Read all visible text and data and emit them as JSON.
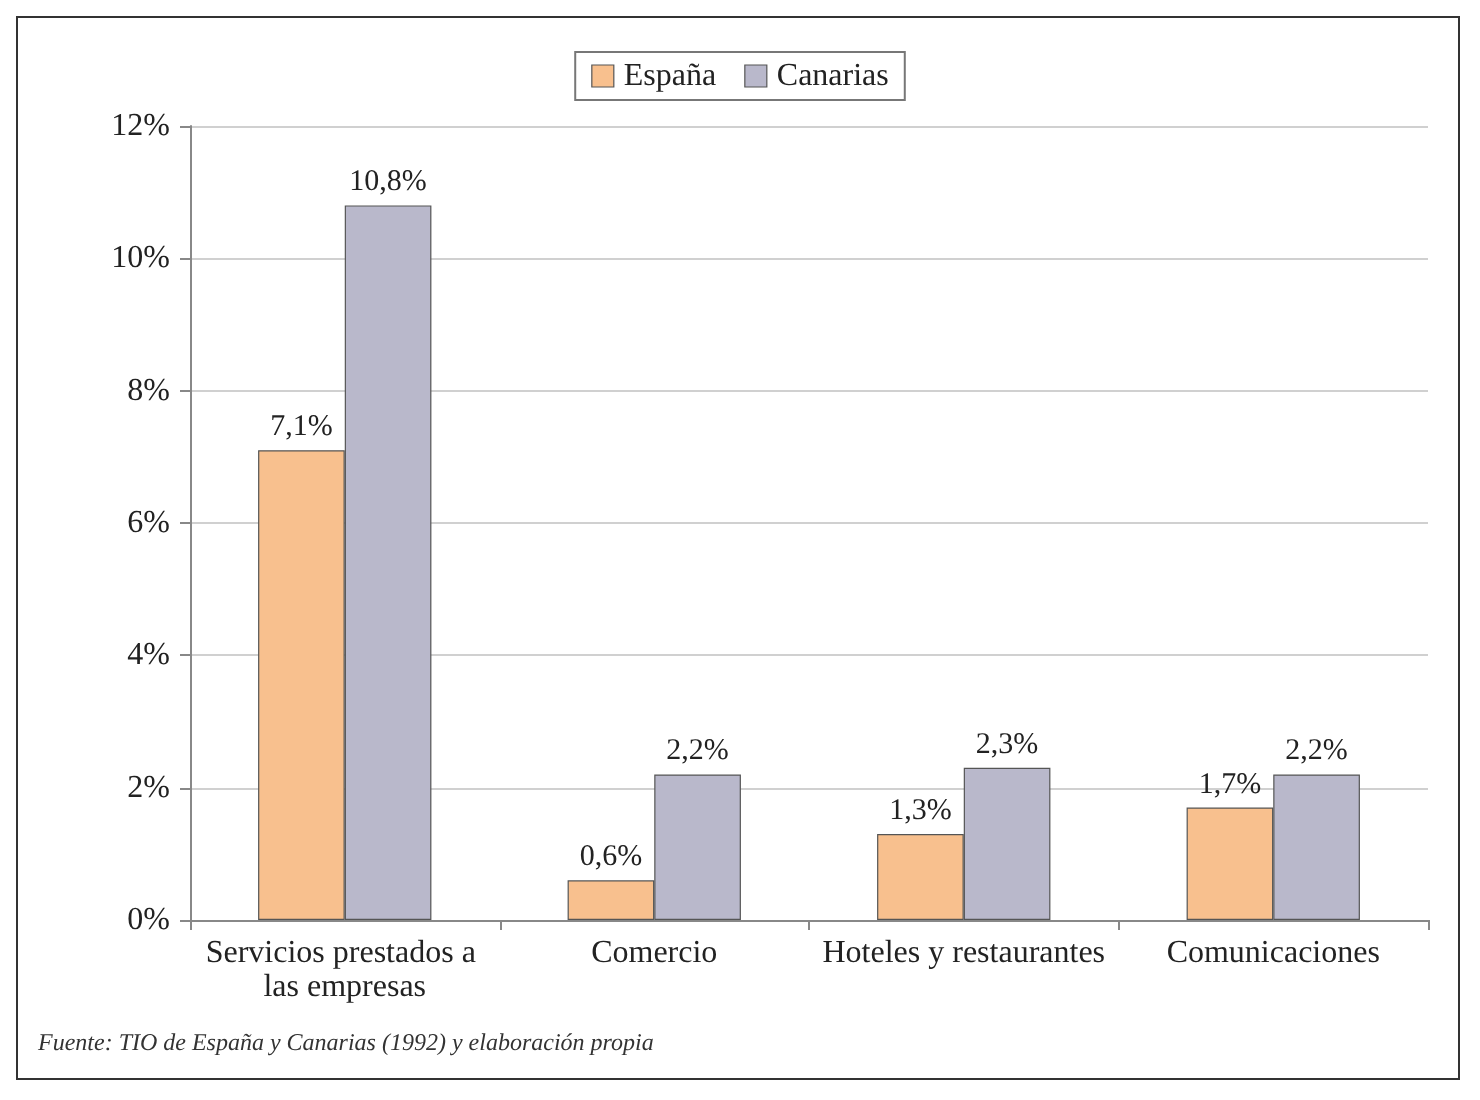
{
  "chart_data": {
    "type": "bar",
    "categories": [
      "Servicios prestados a las empresas",
      "Comercio",
      "Hoteles y restaurantes",
      "Comunicaciones"
    ],
    "series": [
      {
        "name": "España",
        "color": "#f8c08e",
        "values": [
          7.1,
          0.6,
          1.3,
          1.7
        ],
        "value_labels": [
          "7,1%",
          "0,6%",
          "1,3%",
          "1,7%"
        ]
      },
      {
        "name": "Canarias",
        "color": "#b9b8cb",
        "values": [
          10.8,
          2.2,
          2.3,
          2.2
        ],
        "value_labels": [
          "10,8%",
          "2,2%",
          "2,3%",
          "2,2%"
        ]
      }
    ],
    "ylim": [
      0,
      12
    ],
    "yticks": [
      {
        "value": 0,
        "label": "0%"
      },
      {
        "value": 2,
        "label": "2%"
      },
      {
        "value": 4,
        "label": "4%"
      },
      {
        "value": 6,
        "label": "6%"
      },
      {
        "value": 8,
        "label": "8%"
      },
      {
        "value": 10,
        "label": "10%"
      },
      {
        "value": 12,
        "label": "12%"
      }
    ],
    "grid": "y",
    "legend": "top",
    "annotations": [
      "Fuente: TIO de España y Canarias (1992) y elaboración propia"
    ]
  }
}
